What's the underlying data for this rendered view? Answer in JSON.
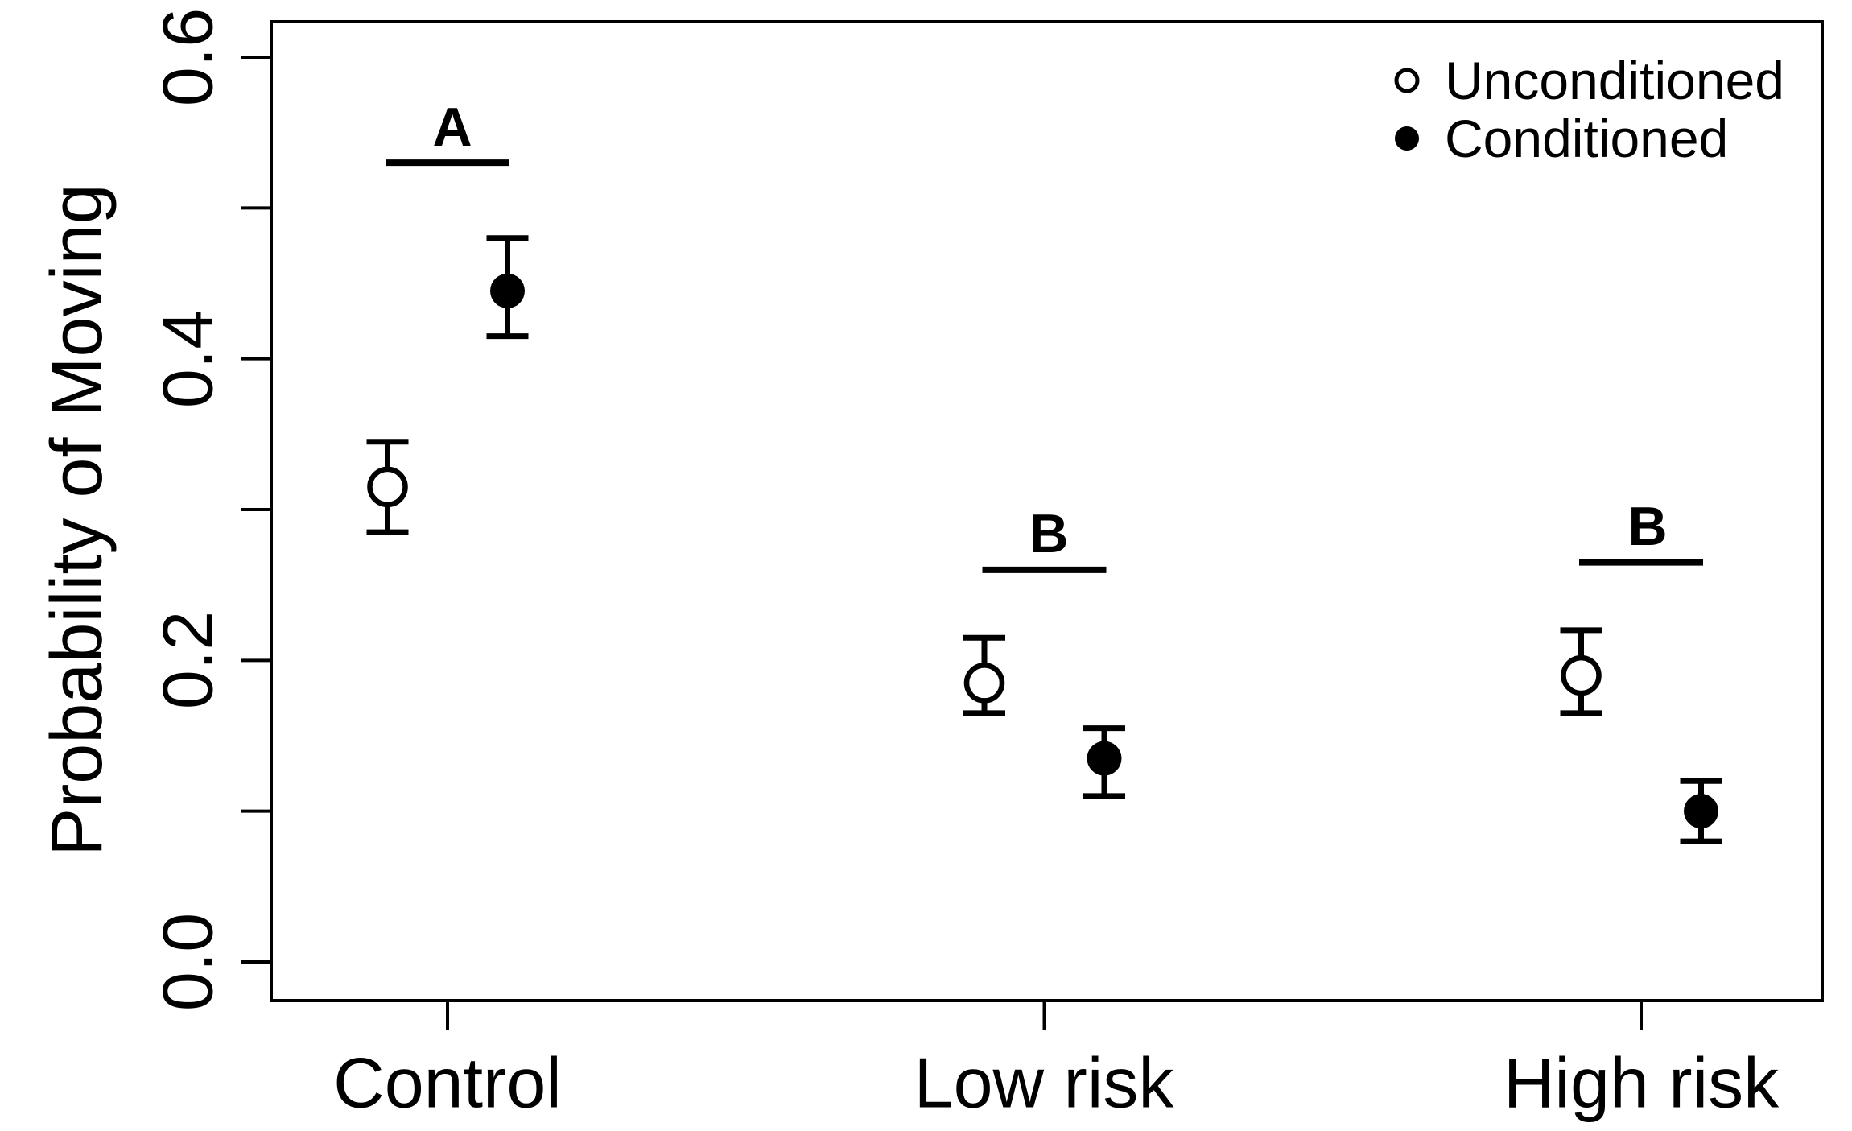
{
  "figure": {
    "colors": {
      "ink": "#000000",
      "background": "#ffffff",
      "open_marker_fill": "#ffffff"
    }
  },
  "chart_data": {
    "type": "scatter",
    "title": "",
    "xlabel": "",
    "ylabel": "Probability of Moving",
    "categories": [
      "Control",
      "Low risk",
      "High risk"
    ],
    "ylim": [
      0.0,
      0.6
    ],
    "ytick_step": 0.1,
    "ytick_labels": [
      "0.0",
      "0.2",
      "0.4",
      "0.6"
    ],
    "ytick_labeled_values": [
      0.0,
      0.2,
      0.4,
      0.6
    ],
    "grid": false,
    "error_bars": true,
    "legend_position": "top-right",
    "legend": [
      {
        "label": "Unconditioned",
        "marker": "open-circle"
      },
      {
        "label": "Conditioned",
        "marker": "filled-circle"
      }
    ],
    "series": [
      {
        "name": "Unconditioned",
        "marker": "open-circle",
        "values": [
          0.315,
          0.185,
          0.19
        ],
        "ci_low": [
          0.285,
          0.165,
          0.165
        ],
        "ci_high": [
          0.345,
          0.215,
          0.22
        ]
      },
      {
        "name": "Conditioned",
        "marker": "filled-circle",
        "values": [
          0.445,
          0.135,
          0.1
        ],
        "ci_low": [
          0.415,
          0.11,
          0.08
        ],
        "ci_high": [
          0.48,
          0.155,
          0.12
        ]
      }
    ],
    "significance_groups": [
      {
        "label": "A",
        "category": "Control",
        "bar_value": 0.53
      },
      {
        "label": "B",
        "category": "Low risk",
        "bar_value": 0.26
      },
      {
        "label": "B",
        "category": "High risk",
        "bar_value": 0.265
      }
    ]
  }
}
